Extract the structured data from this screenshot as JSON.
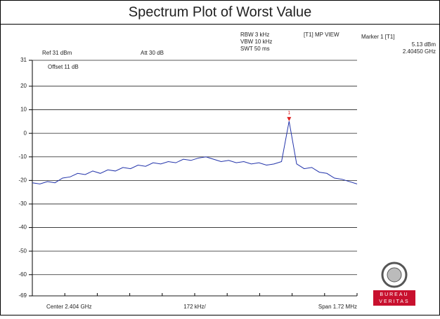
{
  "chart_data": {
    "type": "line",
    "title": "Spectrum Plot of Worst Value",
    "annotations": [
      "Ref 31 dBm",
      "Att 30 dB",
      "Offset 11 dB",
      "RBW 3 kHz",
      "VBW 10 kHz",
      "SWT 50 ms",
      "[T1] MP VIEW",
      "Marker 1 [T1]",
      "5.13 dBm",
      "2.40450 GHz"
    ],
    "x_labels": [
      "Center 2.404 GHz",
      "172 kHz/",
      "Span 1.72 MHz"
    ],
    "marker_label": "1",
    "logo": [
      "BUREAU",
      "VERITAS"
    ],
    "x": [
      2.40314,
      2.40318,
      2.40322,
      2.40326,
      2.4033,
      2.40334,
      2.40338,
      2.40342,
      2.40346,
      2.4035,
      2.40354,
      2.40358,
      2.40362,
      2.40366,
      2.4037,
      2.40374,
      2.40378,
      2.40382,
      2.40386,
      2.4039,
      2.40394,
      2.40398,
      2.40402,
      2.40406,
      2.4041,
      2.40414,
      2.40418,
      2.40422,
      2.40426,
      2.4043,
      2.40434,
      2.40438,
      2.40442,
      2.40446,
      2.4045,
      2.40454,
      2.40458,
      2.40462,
      2.40466,
      2.4047,
      2.40474,
      2.40478,
      2.40482,
      2.40486
    ],
    "series": [
      {
        "name": "Trace 1",
        "color": "#2233aa",
        "values": [
          -21,
          -21.5,
          -20.5,
          -21,
          -19,
          -18.5,
          -17,
          -17.5,
          -16,
          -17,
          -15.5,
          -16,
          -14.5,
          -15,
          -13.5,
          -14,
          -12.5,
          -13,
          -12,
          -12.5,
          -11,
          -11.5,
          -10.5,
          -10,
          -11,
          -12,
          -11.5,
          -12.5,
          -12,
          -13,
          -12.5,
          -13.5,
          -13,
          -12,
          5.13,
          -13,
          -15,
          -14.5,
          -16.5,
          -17,
          -19,
          -19.5,
          -20.5,
          -21.5
        ]
      }
    ],
    "marker_index": 34,
    "xlim": [
      2.40314,
      2.40486
    ],
    "ylim": [
      -69,
      31
    ],
    "yticks": [
      31,
      20,
      10,
      0,
      -10,
      -20,
      -30,
      -40,
      -50,
      -60,
      -69
    ],
    "grid": true
  }
}
